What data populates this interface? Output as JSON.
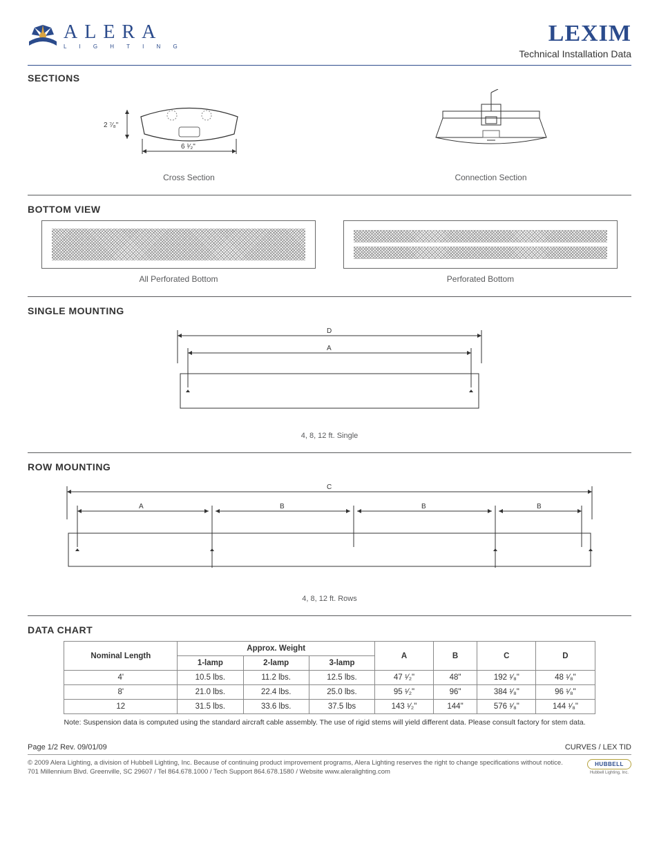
{
  "brand": {
    "name": "ALERA",
    "tagline": "L I G H T I N G",
    "accent": "#2b4b8c",
    "gold": "#d9a441"
  },
  "doc": {
    "title": "LEXIM",
    "subtitle": "Technical Installation Data"
  },
  "sections": {
    "sections_heading": "SECTIONS",
    "cross_section": {
      "caption": "Cross Section",
      "height_label": "2 ⁷⁄₈\"",
      "width_label": "6 ¹⁄₂\""
    },
    "connection_section": {
      "caption": "Connection Section"
    }
  },
  "bottom_view": {
    "heading": "BOTTOM VIEW",
    "all_perf_caption": "All Perforated Bottom",
    "perf_caption": "Perforated Bottom"
  },
  "single_mounting": {
    "heading": "SINGLE MOUNTING",
    "labels": {
      "D": "D",
      "A": "A"
    },
    "caption": "4, 8, 12 ft. Single"
  },
  "row_mounting": {
    "heading": "ROW MOUNTING",
    "labels": {
      "C": "C",
      "A": "A",
      "B": "B"
    },
    "caption": "4, 8, 12 ft. Rows"
  },
  "data_chart": {
    "heading": "DATA CHART",
    "columns": {
      "nominal": "Nominal Length",
      "approx_weight": "Approx. Weight",
      "lamp1": "1-lamp",
      "lamp2": "2-lamp",
      "lamp3": "3-lamp",
      "A": "A",
      "B": "B",
      "C": "C",
      "D": "D"
    },
    "rows": [
      {
        "len": "4'",
        "w1": "10.5 lbs.",
        "w2": "11.2 lbs.",
        "w3": "12.5 lbs.",
        "A": "47 ¹⁄₂\"",
        "B": "48\"",
        "C": "192 ¹⁄₈\"",
        "D": "48 ¹⁄₈\""
      },
      {
        "len": "8'",
        "w1": "21.0 lbs.",
        "w2": "22.4 lbs.",
        "w3": "25.0 lbs.",
        "A": "95 ¹⁄₂\"",
        "B": "96\"",
        "C": "384 ¹⁄₈\"",
        "D": "96 ¹⁄₈\""
      },
      {
        "len": "12",
        "w1": "31.5 lbs.",
        "w2": "33.6 lbs.",
        "w3": "37.5 lbs",
        "A": "143 ¹⁄₂\"",
        "B": "144\"",
        "C": "576 ¹⁄₈\"",
        "D": "144 ¹⁄₈\""
      }
    ],
    "note": "Note: Suspension data is computed using the standard aircraft cable assembly. The use of rigid stems will yield different data. Please consult factory for stem data."
  },
  "footer": {
    "page": "Page 1/2 Rev. 09/01/09",
    "breadcrumb": "CURVES / LEX TID",
    "legal": "© 2009 Alera Lighting, a division of Hubbell Lighting, Inc. Because of continuing product improvement programs, Alera Lighting reserves the right to change specifications without notice. 701 Millennium Blvd. Greenville, SC 29607 / Tel 864.678.1000 / Tech Support 864.678.1580 / Website www.aleralighting.com",
    "hubbell": "HUBBELL",
    "hubbell_sub": "Hubbell Lighting, Inc."
  }
}
